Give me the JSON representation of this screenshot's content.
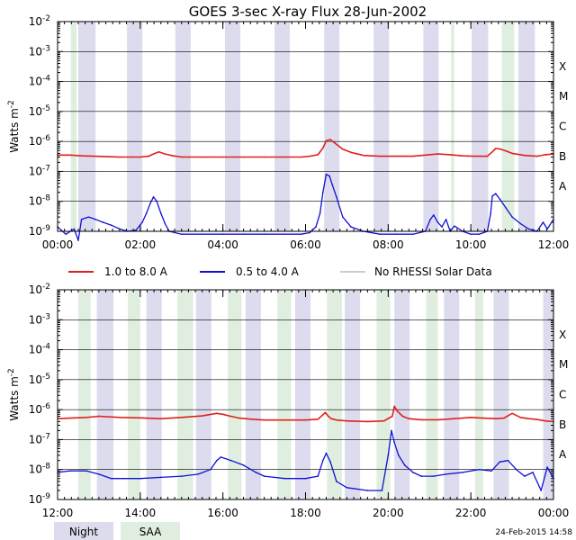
{
  "title": "GOES 3-sec X-ray Flux   28-Jun-2002",
  "ylabel": "Watts m",
  "ylabel_sup": "-2",
  "flare_classes": [
    "A",
    "B",
    "C",
    "M",
    "X"
  ],
  "legend": {
    "long": "1.0 to 8.0 A",
    "short": "0.5 to 4.0 A",
    "norhessi": "No RHESSI Solar Data",
    "night": "Night",
    "saa": "SAA"
  },
  "timestamp": "24-Feb-2015 14:58",
  "colors": {
    "long": "#e0201c",
    "short": "#1010d8",
    "norhessi": "#999999",
    "night": "#dcdcee",
    "saa": "#dfeedf",
    "grid": "#000000"
  },
  "chart_data": [
    {
      "type": "line",
      "title": "GOES 3-sec X-ray Flux   28-Jun-2002",
      "ylabel": "Watts m-2",
      "yscale": "log",
      "ylim": [
        1e-09,
        0.01
      ],
      "xlim_hours": [
        0,
        12
      ],
      "xticks": [
        "00:00",
        "02:00",
        "04:00",
        "06:00",
        "08:00",
        "10:00",
        "12:00"
      ],
      "night": [
        [
          0.5,
          0.92
        ],
        [
          1.68,
          2.05
        ],
        [
          2.85,
          3.22
        ],
        [
          4.05,
          4.42
        ],
        [
          5.25,
          5.62
        ],
        [
          6.45,
          6.82
        ],
        [
          7.65,
          8.02
        ],
        [
          8.85,
          9.22
        ],
        [
          10.02,
          10.42
        ],
        [
          11.15,
          11.55
        ]
      ],
      "saa": [
        [
          0.32,
          0.46
        ],
        [
          9.52,
          9.6
        ],
        [
          10.75,
          11.05
        ]
      ],
      "series": [
        {
          "name": "1.0 to 8.0 A",
          "x": [
            0.0,
            0.3,
            0.6,
            0.9,
            1.2,
            1.5,
            1.8,
            2.0,
            2.2,
            2.32,
            2.45,
            2.6,
            2.8,
            3.0,
            3.5,
            4.0,
            4.5,
            5.0,
            5.5,
            5.9,
            6.1,
            6.3,
            6.42,
            6.5,
            6.6,
            6.75,
            6.9,
            7.1,
            7.4,
            7.8,
            8.2,
            8.6,
            8.9,
            9.2,
            9.5,
            9.8,
            10.1,
            10.4,
            10.52,
            10.6,
            10.7,
            10.85,
            11.0,
            11.3,
            11.6,
            11.8,
            12.0
          ],
          "values": [
            3.5e-07,
            3.5e-07,
            3.3e-07,
            3.2e-07,
            3.1e-07,
            3e-07,
            3e-07,
            3e-07,
            3.2e-07,
            3.8e-07,
            4.5e-07,
            3.8e-07,
            3.3e-07,
            3e-07,
            3e-07,
            3e-07,
            3e-07,
            3e-07,
            3e-07,
            3e-07,
            3.2e-07,
            3.6e-07,
            6e-07,
            1.05e-06,
            1.15e-06,
            8e-07,
            5.5e-07,
            4.3e-07,
            3.4e-07,
            3.2e-07,
            3.2e-07,
            3.2e-07,
            3.5e-07,
            3.8e-07,
            3.6e-07,
            3.3e-07,
            3.2e-07,
            3.2e-07,
            4.5e-07,
            5.8e-07,
            5.6e-07,
            4.8e-07,
            4e-07,
            3.4e-07,
            3.2e-07,
            3.6e-07,
            3.8e-07
          ]
        },
        {
          "name": "0.5 to 4.0 A",
          "x": [
            0.0,
            0.2,
            0.4,
            0.5,
            0.58,
            0.75,
            0.92,
            1.1,
            1.3,
            1.5,
            1.7,
            1.9,
            2.05,
            2.15,
            2.25,
            2.32,
            2.4,
            2.5,
            2.6,
            2.7,
            3.0,
            3.5,
            4.0,
            4.5,
            5.0,
            5.5,
            5.9,
            6.1,
            6.25,
            6.35,
            6.42,
            6.5,
            6.58,
            6.65,
            6.75,
            6.9,
            7.1,
            7.4,
            7.8,
            8.2,
            8.6,
            8.9,
            9.02,
            9.1,
            9.2,
            9.3,
            9.4,
            9.5,
            9.6,
            9.8,
            10.0,
            10.2,
            10.4,
            10.48,
            10.52,
            10.6,
            10.7,
            10.85,
            11.0,
            11.2,
            11.4,
            11.6,
            11.75,
            11.85,
            12.0
          ],
          "values": [
            1.4e-09,
            8e-10,
            1.2e-09,
            5e-10,
            2.5e-09,
            3e-09,
            2.5e-09,
            2e-09,
            1.6e-09,
            1.2e-09,
            1e-09,
            1.1e-09,
            2e-09,
            4e-09,
            9e-09,
            1.4e-08,
            1e-08,
            4e-09,
            1.8e-09,
            1e-09,
            8e-10,
            8e-10,
            8e-10,
            8e-10,
            8e-10,
            8e-10,
            8e-10,
            9e-10,
            1.4e-09,
            4e-09,
            2e-08,
            8e-08,
            7e-08,
            3.5e-08,
            1.4e-08,
            3e-09,
            1.4e-09,
            1e-09,
            8e-10,
            8e-10,
            8e-10,
            1e-09,
            2.5e-09,
            3.5e-09,
            2e-09,
            1.4e-09,
            2.5e-09,
            1e-09,
            1.5e-09,
            1e-09,
            8e-10,
            8e-10,
            1e-09,
            4e-09,
            1.5e-08,
            1.8e-08,
            1.2e-08,
            6e-09,
            3e-09,
            1.8e-09,
            1.2e-09,
            1e-09,
            2e-09,
            1.2e-09,
            2.5e-09
          ]
        }
      ]
    },
    {
      "type": "line",
      "ylabel": "Watts m-2",
      "yscale": "log",
      "ylim": [
        1e-09,
        0.01
      ],
      "xlim_hours": [
        12,
        24
      ],
      "xticks": [
        "12:00",
        "14:00",
        "16:00",
        "18:00",
        "20:00",
        "22:00",
        "00:00"
      ],
      "night": [
        [
          12.95,
          13.35
        ],
        [
          14.15,
          14.52
        ],
        [
          15.35,
          15.72
        ],
        [
          16.55,
          16.92
        ],
        [
          17.75,
          18.12
        ],
        [
          18.95,
          19.32
        ],
        [
          20.15,
          20.52
        ],
        [
          21.35,
          21.72
        ],
        [
          22.55,
          22.92
        ],
        [
          23.75,
          24.0
        ]
      ],
      "saa": [
        [
          12.5,
          12.8
        ],
        [
          13.7,
          14.0
        ],
        [
          14.9,
          15.28
        ],
        [
          16.12,
          16.45
        ],
        [
          17.32,
          17.65
        ],
        [
          18.52,
          18.88
        ],
        [
          19.72,
          20.05
        ],
        [
          20.92,
          21.2
        ],
        [
          22.1,
          22.3
        ]
      ],
      "series": [
        {
          "name": "1.0 to 8.0 A",
          "x": [
            12.0,
            12.3,
            12.7,
            13.0,
            13.5,
            14.0,
            14.5,
            15.0,
            15.5,
            15.85,
            16.0,
            16.15,
            16.4,
            16.7,
            17.0,
            17.5,
            18.0,
            18.3,
            18.48,
            18.55,
            18.62,
            18.75,
            19.0,
            19.5,
            19.9,
            20.1,
            20.15,
            20.22,
            20.35,
            20.5,
            20.8,
            21.2,
            21.6,
            22.0,
            22.3,
            22.6,
            22.8,
            23.0,
            23.2,
            23.4,
            23.6,
            23.8,
            24.0
          ],
          "values": [
            5e-07,
            5.2e-07,
            5.5e-07,
            6e-07,
            5.5e-07,
            5.3e-07,
            5e-07,
            5.5e-07,
            6.2e-07,
            7.5e-07,
            7e-07,
            6.2e-07,
            5.2e-07,
            4.8e-07,
            4.5e-07,
            4.5e-07,
            4.5e-07,
            4.8e-07,
            8e-07,
            6e-07,
            5e-07,
            4.5e-07,
            4.2e-07,
            4e-07,
            4.2e-07,
            6e-07,
            1.3e-06,
            9e-07,
            6e-07,
            5e-07,
            4.6e-07,
            4.6e-07,
            5e-07,
            5.5e-07,
            5.2e-07,
            5e-07,
            5.2e-07,
            7.5e-07,
            5.5e-07,
            5e-07,
            4.7e-07,
            4.2e-07,
            4e-07
          ]
        },
        {
          "name": "0.5 to 4.0 A",
          "x": [
            12.0,
            12.3,
            12.7,
            13.0,
            13.3,
            13.6,
            14.0,
            14.5,
            15.0,
            15.4,
            15.7,
            15.85,
            15.95,
            16.2,
            16.5,
            16.8,
            17.0,
            17.5,
            18.0,
            18.3,
            18.42,
            18.5,
            18.6,
            18.75,
            19.0,
            19.5,
            19.85,
            20.0,
            20.08,
            20.15,
            20.25,
            20.4,
            20.6,
            20.8,
            21.1,
            21.4,
            21.8,
            22.2,
            22.5,
            22.7,
            22.9,
            23.1,
            23.3,
            23.5,
            23.7,
            23.85,
            24.0
          ],
          "values": [
            8e-09,
            9e-09,
            9e-09,
            7e-09,
            5e-09,
            5e-09,
            5e-09,
            5.5e-09,
            6e-09,
            7e-09,
            1e-08,
            2e-08,
            2.6e-08,
            2e-08,
            1.4e-08,
            8e-09,
            6e-09,
            5e-09,
            5e-09,
            6e-09,
            2e-08,
            3.5e-08,
            1.8e-08,
            4e-09,
            2.5e-09,
            2e-09,
            2e-09,
            3e-08,
            2e-07,
            8e-08,
            3e-08,
            1.4e-08,
            8e-09,
            6e-09,
            6e-09,
            7e-09,
            8e-09,
            1e-08,
            9e-09,
            1.8e-08,
            2e-08,
            1e-08,
            6e-09,
            8e-09,
            2e-09,
            1.2e-08,
            5e-09
          ]
        }
      ]
    }
  ]
}
